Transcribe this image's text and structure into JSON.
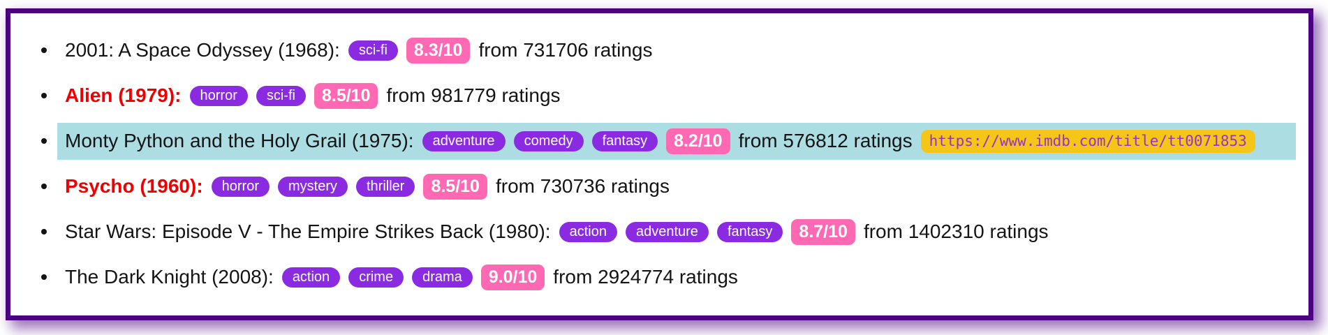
{
  "colors": {
    "page_bg": "#ffffff",
    "frame_border": "#4b0082",
    "text": "#141414",
    "title_emphasis": "#ee0000",
    "tag_bg": "#8a2be2",
    "tag_text": "#ffffff",
    "rating_bg": "#ff69b4",
    "rating_text": "#ffffff",
    "highlight_bg": "#abdde3",
    "url_bg": "#f5c518",
    "url_text": "#9932cc"
  },
  "movies": [
    {
      "title": "2001: A Space Odyssey (1968):",
      "emphasized": false,
      "genres": [
        "sci-fi"
      ],
      "rating": "8.3/10",
      "ratings_text": "from 731706 ratings",
      "highlighted": false,
      "url": null
    },
    {
      "title": "Alien (1979):",
      "emphasized": true,
      "genres": [
        "horror",
        "sci-fi"
      ],
      "rating": "8.5/10",
      "ratings_text": "from 981779 ratings",
      "highlighted": false,
      "url": null
    },
    {
      "title": "Monty Python and the Holy Grail (1975):",
      "emphasized": false,
      "genres": [
        "adventure",
        "comedy",
        "fantasy"
      ],
      "rating": "8.2/10",
      "ratings_text": "from 576812 ratings",
      "highlighted": true,
      "url": "https://www.imdb.com/title/tt0071853"
    },
    {
      "title": "Psycho (1960):",
      "emphasized": true,
      "genres": [
        "horror",
        "mystery",
        "thriller"
      ],
      "rating": "8.5/10",
      "ratings_text": "from 730736 ratings",
      "highlighted": false,
      "url": null
    },
    {
      "title": "Star Wars: Episode V - The Empire Strikes Back (1980):",
      "emphasized": false,
      "genres": [
        "action",
        "adventure",
        "fantasy"
      ],
      "rating": "8.7/10",
      "ratings_text": "from 1402310 ratings",
      "highlighted": false,
      "url": null
    },
    {
      "title": "The Dark Knight (2008):",
      "emphasized": false,
      "genres": [
        "action",
        "crime",
        "drama"
      ],
      "rating": "9.0/10",
      "ratings_text": "from 2924774 ratings",
      "highlighted": false,
      "url": null
    }
  ]
}
